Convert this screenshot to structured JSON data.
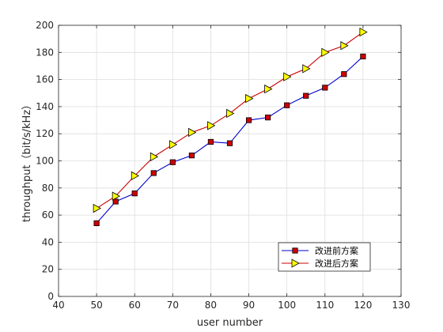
{
  "chart_data": {
    "type": "line",
    "title": "",
    "xlabel": "user number",
    "ylabel": "throughput（bit/s/kHz）",
    "xlim": [
      40,
      130
    ],
    "ylim": [
      0,
      200
    ],
    "xticks": [
      40,
      50,
      60,
      70,
      80,
      90,
      100,
      110,
      120,
      130
    ],
    "yticks": [
      0,
      20,
      40,
      60,
      80,
      100,
      120,
      140,
      160,
      180,
      200
    ],
    "grid": true,
    "legend_position": "bottom-right",
    "x": [
      50,
      55,
      60,
      65,
      70,
      75,
      80,
      85,
      90,
      95,
      100,
      105,
      110,
      115,
      120
    ],
    "series": [
      {
        "name": "改进前方案",
        "color": "#0000cc",
        "marker": "square",
        "marker_fill": "#cc0000",
        "values": [
          54,
          70,
          76,
          91,
          99,
          104,
          114,
          113,
          130,
          132,
          141,
          148,
          154,
          164,
          177
        ]
      },
      {
        "name": "改进后方案",
        "color": "#cc0000",
        "marker": "triangle-right",
        "marker_fill": "#ffff00",
        "values": [
          65,
          74,
          89,
          103,
          112,
          121,
          126,
          135,
          146,
          153,
          162,
          168,
          180,
          185,
          195
        ]
      }
    ]
  }
}
